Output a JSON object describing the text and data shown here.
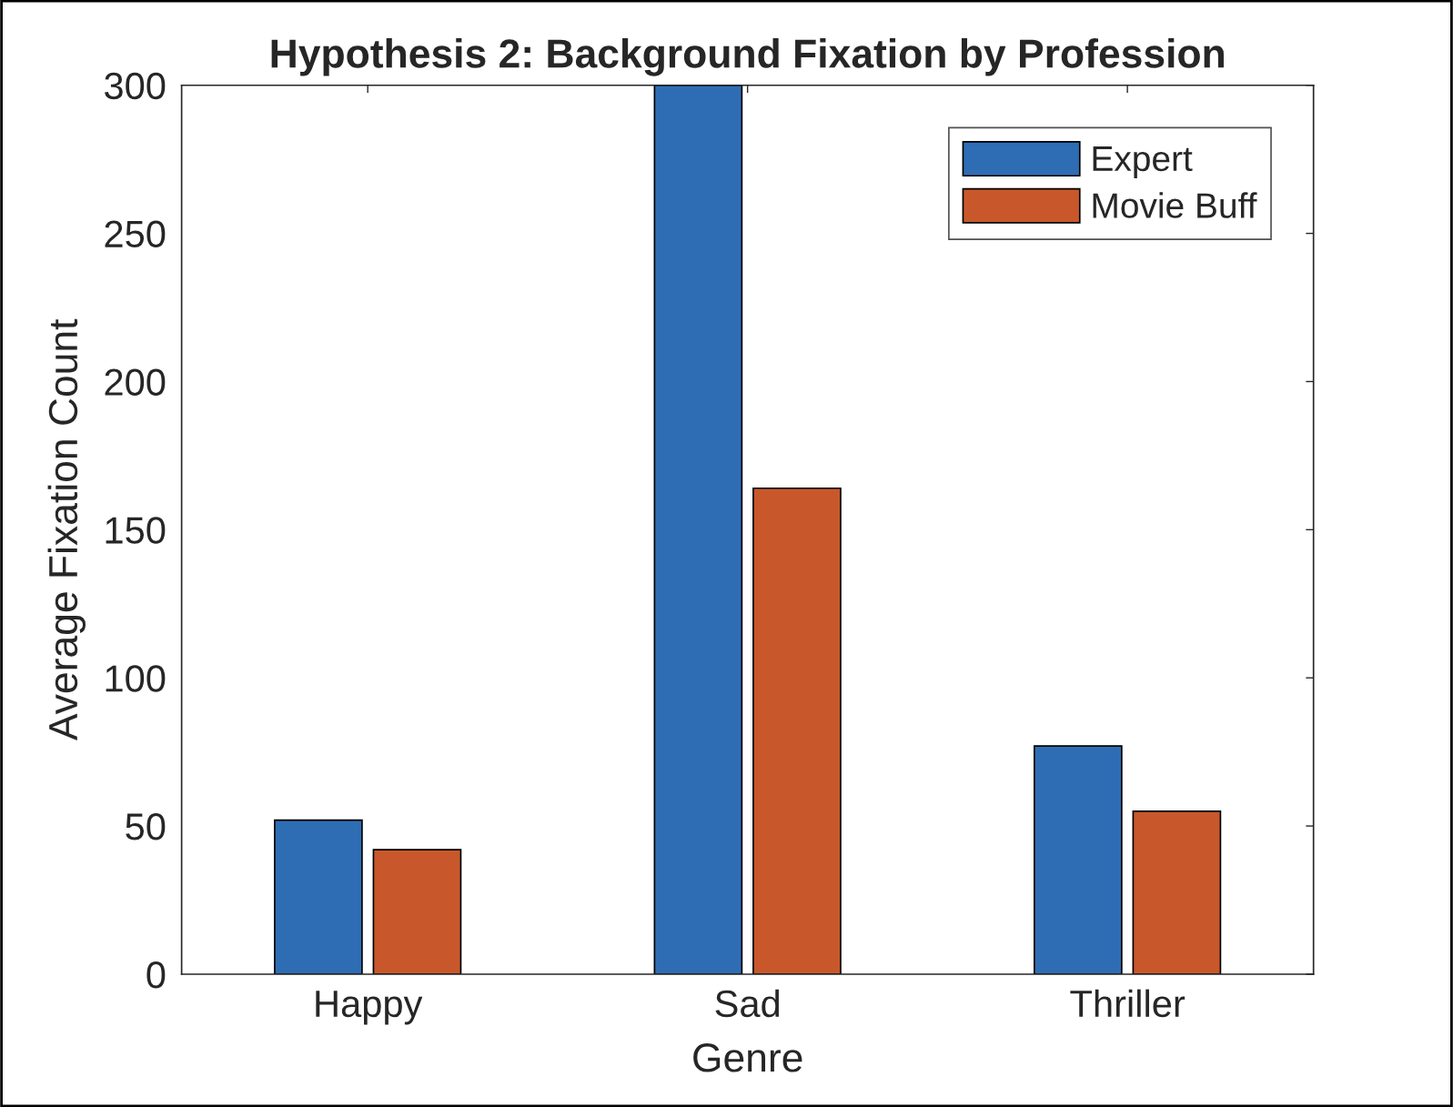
{
  "chart_data": {
    "type": "bar",
    "title": "Hypothesis 2: Background Fixation by Profession",
    "xlabel": "Genre",
    "ylabel": "Average Fixation Count",
    "categories": [
      "Happy",
      "Sad",
      "Thriller"
    ],
    "series": [
      {
        "name": "Expert",
        "color": "#2e6db4",
        "values": [
          52,
          300,
          77
        ]
      },
      {
        "name": "Movie Buff",
        "color": "#c8582b",
        "values": [
          42,
          164,
          55
        ]
      }
    ],
    "ylim": [
      0,
      300
    ],
    "yticks": [
      0,
      50,
      100,
      150,
      200,
      250,
      300
    ],
    "legend": "top right",
    "grid": false
  }
}
